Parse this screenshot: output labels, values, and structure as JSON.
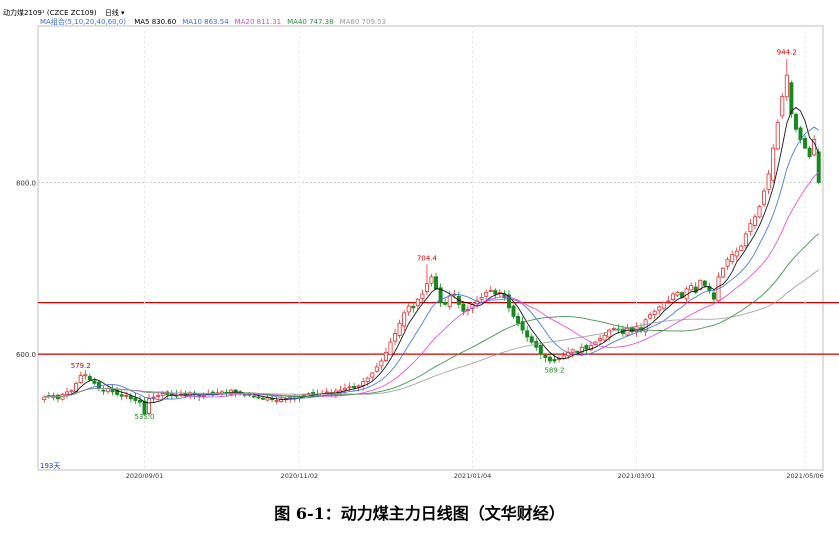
{
  "header": {
    "symbol_line": "动力煤2109¹ (CZCE ZC109)",
    "period": "日线",
    "ma_label": "MA组合(5,10,20,40,60,0)",
    "ma": [
      {
        "label": "MA5",
        "value": "830.60",
        "color": "#000000"
      },
      {
        "label": "MA10",
        "value": "863.54",
        "color": "#3b6fd6"
      },
      {
        "label": "MA20",
        "value": "811.31",
        "color": "#e040e0"
      },
      {
        "label": "MA40",
        "value": "747.38",
        "color": "#2e8b3e"
      },
      {
        "label": "MA60",
        "value": "709.53",
        "color": "#9a9a9a"
      }
    ]
  },
  "days_label": "193天",
  "caption": "图 6-1：动力煤主力日线图（文华财经）",
  "colors": {
    "up": "#e03030",
    "down": "#168a1e",
    "support": "#d40000",
    "grid": "#cfcfcf"
  },
  "chart_data": {
    "type": "candlestick",
    "x_ticks": [
      "2020/09/01",
      "2020/11/02",
      "2021/01/04",
      "2021/03/01",
      "2021/05/06"
    ],
    "y_ticks": [
      600.0,
      800.0
    ],
    "ylim": [
      465,
      980
    ],
    "horizontal_lines": [
      600,
      660
    ],
    "annotations": [
      {
        "label": "579.2",
        "value": 579.2
      },
      {
        "label": "535.0",
        "value": 535.0
      },
      {
        "label": "704.4",
        "value": 704.4
      },
      {
        "label": "589.2",
        "value": 589.2
      },
      {
        "label": "944.2",
        "value": 944.2
      }
    ],
    "closes": [
      550,
      551,
      552,
      548,
      553,
      556,
      558,
      566,
      575,
      576,
      570,
      566,
      560,
      558,
      560,
      556,
      553,
      551,
      552,
      548,
      546,
      544,
      530,
      548,
      550,
      552,
      554,
      553,
      552,
      551,
      553,
      552,
      555,
      553,
      551,
      552,
      554,
      553,
      555,
      556,
      555,
      558,
      555,
      554,
      553,
      552,
      550,
      550,
      548,
      549,
      547,
      546,
      547,
      548,
      550,
      549,
      551,
      553,
      554,
      555,
      553,
      554,
      556,
      555,
      557,
      558,
      560,
      562,
      561,
      563,
      568,
      572,
      578,
      585,
      592,
      602,
      614,
      624,
      636,
      648,
      656,
      654,
      664,
      670,
      682,
      690,
      676,
      660,
      658,
      668,
      670,
      658,
      650,
      652,
      658,
      662,
      666,
      672,
      674,
      670,
      672,
      666,
      654,
      644,
      636,
      628,
      620,
      614,
      608,
      600,
      596,
      592,
      592,
      595,
      598,
      602,
      605,
      602,
      608,
      606,
      610,
      614,
      618,
      622,
      628,
      630,
      628,
      624,
      630,
      626,
      632,
      628,
      640,
      646,
      650,
      655,
      660,
      662,
      670,
      672,
      666,
      676,
      680,
      672,
      686,
      680,
      674,
      664,
      690,
      700,
      710,
      716,
      720,
      726,
      740,
      752,
      760,
      772,
      790,
      810,
      840,
      870,
      900,
      925,
      880,
      862,
      850,
      840,
      830,
      850,
      800
    ]
  }
}
